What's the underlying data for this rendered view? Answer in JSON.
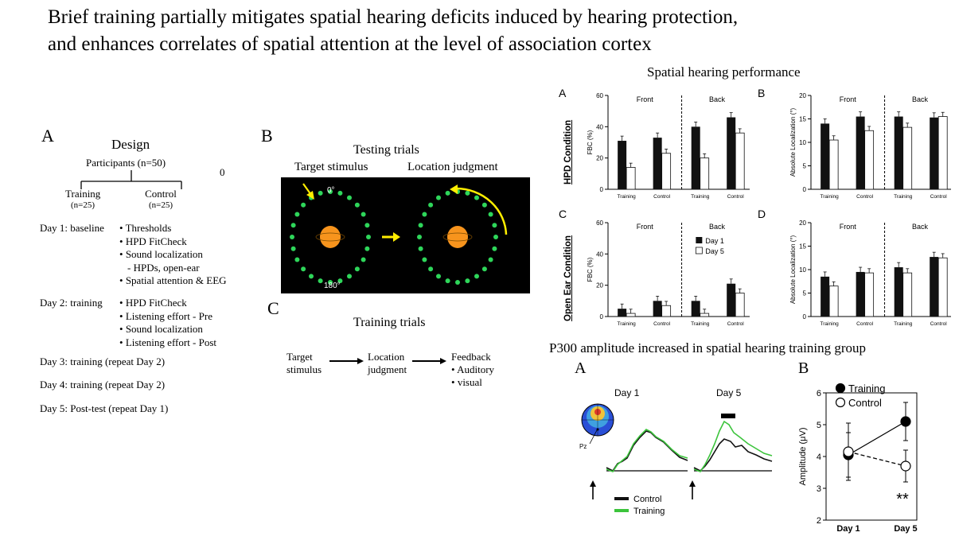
{
  "title": {
    "line1": "Brief training partially mitigates spatial hearing deficits induced by hearing protection,",
    "line2": "and enhances correlates of spatial attention at the level of association cortex"
  },
  "design": {
    "panel_letter": "A",
    "heading": "Design",
    "participants": "Participants (n=50)",
    "stray_zero": "0",
    "training_label": "Training",
    "training_n": "(n=25)",
    "control_label": "Control",
    "control_n": "(n=25)",
    "days": [
      {
        "label": "Day 1: baseline",
        "items": [
          "Thresholds",
          "HPD FitCheck",
          "Sound localization",
          "- HPDs, open-ear",
          "Spatial attention & EEG"
        ]
      },
      {
        "label": "Day 2: training",
        "items": [
          "HPD FitCheck",
          "Listening effort - Pre",
          "Sound localization",
          "Listening effort - Post"
        ]
      },
      {
        "label": "Day 3: training (repeat Day 2)",
        "items": []
      },
      {
        "label": "Day 4: training (repeat Day 2)",
        "items": []
      },
      {
        "label": "Day 5: Post-test (repeat Day 1)",
        "items": []
      }
    ]
  },
  "testing": {
    "panel_letter": "B",
    "heading": "Testing trials",
    "target_label": "Target stimulus",
    "location_label": "Location judgment",
    "deg_top": "0°",
    "deg_bottom": "180°",
    "dot_color": "#2ed65a",
    "head_color": "#f7941d",
    "arrow_color": "#ffee00"
  },
  "training_trials": {
    "panel_letter": "C",
    "heading": "Training trials",
    "step1a": "Target",
    "step1b": "stimulus",
    "step2a": "Location",
    "step2b": "judgment",
    "step3": "Feedback",
    "bullet1": "Auditory",
    "bullet2": "visual"
  },
  "spatial": {
    "heading": "Spatial hearing performance",
    "row1_label": "HPD Condition",
    "row2_label": "Open Ear Condition",
    "front": "Front",
    "back": "Back",
    "legend": [
      "Day 1",
      "Day 5"
    ],
    "panels": [
      {
        "letter": "A",
        "ylabel": "FBC (%)",
        "ylim": [
          0,
          60
        ],
        "ticks": [
          "0",
          "20",
          "40",
          "60"
        ],
        "categories": [
          "Training",
          "Control",
          "Training",
          "Control"
        ],
        "day1": [
          31,
          33,
          40,
          46
        ],
        "day5": [
          14,
          23,
          20,
          36
        ]
      },
      {
        "letter": "B",
        "ylabel": "Absolute Localization (°)",
        "ylim": [
          0,
          20
        ],
        "ticks": [
          "0",
          "5",
          "10",
          "15",
          "20"
        ],
        "categories": [
          "Training",
          "Control",
          "Training",
          "Control"
        ],
        "day1": [
          14,
          15.5,
          15.5,
          15.3
        ],
        "day5": [
          10.5,
          12.5,
          13.2,
          15.5
        ]
      },
      {
        "letter": "C",
        "ylabel": "FBC (%)",
        "ylim": [
          0,
          60
        ],
        "ticks": [
          "0",
          "20",
          "40",
          "60"
        ],
        "categories": [
          "Training",
          "Control",
          "Training",
          "Control"
        ],
        "day1": [
          5,
          10,
          10,
          21
        ],
        "day5": [
          2,
          7,
          2,
          15
        ]
      },
      {
        "letter": "D",
        "ylabel": "Absolute Localization (°)",
        "ylim": [
          0,
          20
        ],
        "ticks": [
          "0",
          "5",
          "10",
          "15",
          "20"
        ],
        "categories": [
          "Training",
          "Control",
          "Training",
          "Control"
        ],
        "day1": [
          8.5,
          9.5,
          10.5,
          12.7
        ],
        "day5": [
          6.5,
          9.3,
          9.3,
          12.5
        ]
      }
    ]
  },
  "p300": {
    "heading": "P300 amplitude increased in spatial hearing training group",
    "panelA_letter": "A",
    "panelB_letter": "B",
    "day1_label": "Day 1",
    "day5_label": "Day 5",
    "electrode": "Pz",
    "legend_control": "Control",
    "legend_training": "Training",
    "control_color": "#111111",
    "training_color": "#3cc43c"
  },
  "chart_data": {
    "type": "line",
    "ylabel": "Amplitude (μV)",
    "ylim": [
      2,
      6
    ],
    "yticks": [
      "2",
      "3",
      "4",
      "5",
      "6"
    ],
    "categories": [
      "Day 1",
      "Day 5"
    ],
    "series": [
      {
        "name": "Training",
        "values": [
          4.05,
          5.1
        ],
        "marker": "filled",
        "style": "solid"
      },
      {
        "name": "Control",
        "values": [
          4.15,
          3.7
        ],
        "marker": "open",
        "style": "dashed"
      }
    ],
    "annotation": "**",
    "legend_position": "top-left"
  }
}
